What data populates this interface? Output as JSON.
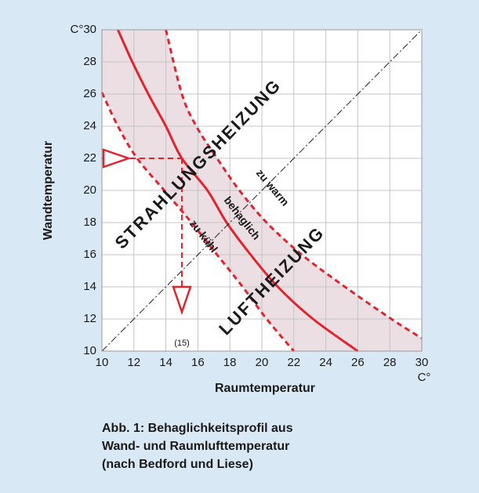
{
  "chart_data": {
    "type": "line",
    "xlabel": "Raumtemperatur",
    "ylabel": "Wandtemperatur",
    "x_unit": "C°",
    "xlim": [
      10,
      30
    ],
    "ylim": [
      10,
      30
    ],
    "xticks": [
      10,
      12,
      14,
      16,
      18,
      20,
      22,
      24,
      26,
      28,
      30
    ],
    "yticks": [
      10,
      12,
      14,
      16,
      18,
      20,
      22,
      24,
      26,
      28,
      {
        "value": 30,
        "label": "C°30"
      }
    ],
    "grid": true,
    "band_color": "#ecdfe3",
    "series": [
      {
        "name": "zu warm",
        "color": "#e2242f",
        "dash": true,
        "x": [
          14,
          15,
          15.9,
          17.2,
          18.6,
          20.3,
          22.5,
          25.2,
          28.1,
          30
        ],
        "values": [
          30,
          26,
          24,
          22,
          20,
          18,
          16,
          14,
          12,
          10.8
        ]
      },
      {
        "name": "behaglich",
        "color": "#e2242f",
        "dash": false,
        "x": [
          11,
          11.9,
          12.9,
          14,
          15,
          16.6,
          17.8,
          19.3,
          21,
          23.2,
          26
        ],
        "values": [
          30,
          28,
          26,
          24,
          22,
          20,
          18,
          16,
          14,
          12,
          10
        ]
      },
      {
        "name": "zu kühl",
        "color": "#e2242f",
        "dash": true,
        "x": [
          10,
          11,
          12.2,
          13.9,
          15.6,
          17.2,
          18.8,
          20.3,
          22
        ],
        "values": [
          26.1,
          24,
          22,
          20,
          18,
          16,
          14,
          12,
          10
        ]
      },
      {
        "color": "#222222",
        "dash": true,
        "x": [
          10,
          30
        ],
        "values": [
          10,
          30
        ]
      }
    ],
    "reading": {
      "x": 15,
      "y": 22,
      "label": "(15)"
    },
    "annotations": [
      "STRAHLUNGSHEIZUNG",
      "LUFTHEIZUNG"
    ],
    "caption": [
      "Abb. 1: Behaglichkeitsprofil aus",
      "Wand- und Raumlufttemperatur",
      "(nach Bedford und Liese)"
    ]
  }
}
